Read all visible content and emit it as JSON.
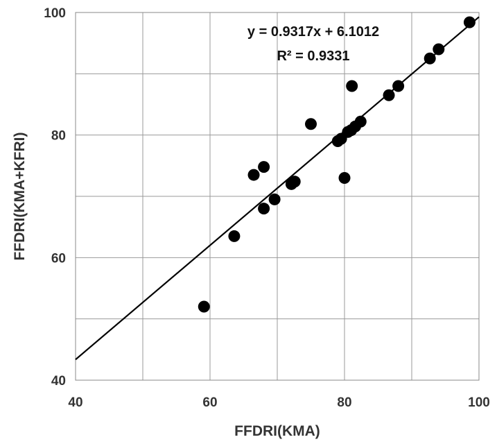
{
  "chart_data": {
    "type": "scatter",
    "xlabel": "FFDRI(KMA)",
    "ylabel": "FFDRI(KMA+KFRI)",
    "xlim": [
      40,
      100
    ],
    "ylim": [
      40,
      100
    ],
    "xticks": [
      "40",
      "60",
      "80",
      "100"
    ],
    "yticks": [
      "40",
      "60",
      "80",
      "100"
    ],
    "grid": true,
    "annotations": {
      "equation": "y = 0.9317x + 6.1012",
      "r_squared": "R² = 0.9331"
    },
    "trendline": {
      "slope": 0.9317,
      "intercept": 6.1012
    },
    "marker_color": "#000000",
    "points": [
      {
        "x": 59.1,
        "y": 52.0
      },
      {
        "x": 63.6,
        "y": 63.5
      },
      {
        "x": 66.5,
        "y": 73.5
      },
      {
        "x": 68.0,
        "y": 74.8
      },
      {
        "x": 68.0,
        "y": 68.0
      },
      {
        "x": 69.6,
        "y": 69.5
      },
      {
        "x": 72.1,
        "y": 72.0
      },
      {
        "x": 72.6,
        "y": 72.4
      },
      {
        "x": 75.0,
        "y": 81.8
      },
      {
        "x": 79.0,
        "y": 79.0
      },
      {
        "x": 79.5,
        "y": 79.4
      },
      {
        "x": 80.0,
        "y": 73.0
      },
      {
        "x": 80.5,
        "y": 80.5
      },
      {
        "x": 81.0,
        "y": 80.8
      },
      {
        "x": 81.1,
        "y": 88.0
      },
      {
        "x": 81.6,
        "y": 81.4
      },
      {
        "x": 82.4,
        "y": 82.2
      },
      {
        "x": 86.6,
        "y": 86.5
      },
      {
        "x": 88.0,
        "y": 88.0
      },
      {
        "x": 92.7,
        "y": 92.5
      },
      {
        "x": 94.0,
        "y": 94.0
      },
      {
        "x": 98.6,
        "y": 98.4
      }
    ]
  }
}
